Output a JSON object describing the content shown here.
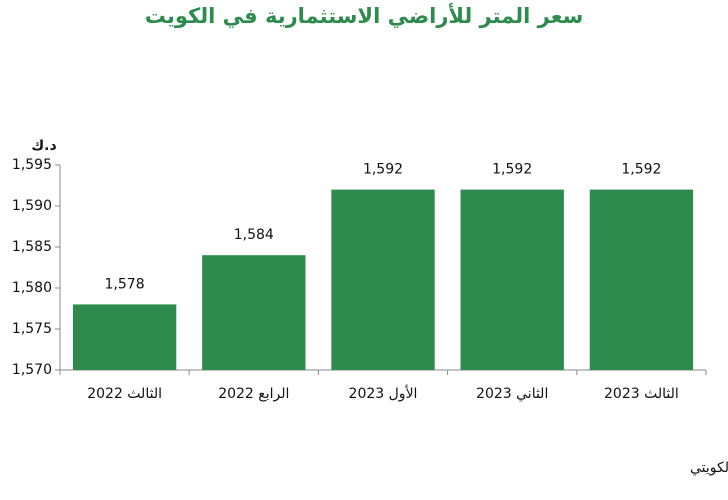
{
  "chart_data": {
    "type": "bar",
    "title": "سعر المتر للأراضي الاستثمارية في الكويت",
    "y_label": "د.ك",
    "source": "المصدر : بيت التمويل الكويتي",
    "categories": [
      "الثالث 2022",
      "الرابع 2022",
      "الأول 2023",
      "الثاني 2023",
      "الثالث 2023"
    ],
    "values": [
      1578,
      1584,
      1592,
      1592,
      1592
    ],
    "value_labels": [
      "1,578",
      "1,584",
      "1,592",
      "1,592",
      "1,592"
    ],
    "color": "#2e8b4e",
    "ylim": [
      1570,
      1595
    ],
    "yticks": [
      {
        "value": 1570,
        "label": "1,570"
      },
      {
        "value": 1575,
        "label": "1,575"
      },
      {
        "value": 1580,
        "label": "1,580"
      },
      {
        "value": 1585,
        "label": "1,585"
      },
      {
        "value": 1590,
        "label": "1,590"
      },
      {
        "value": 1595,
        "label": "1,595"
      }
    ],
    "grid": false
  }
}
